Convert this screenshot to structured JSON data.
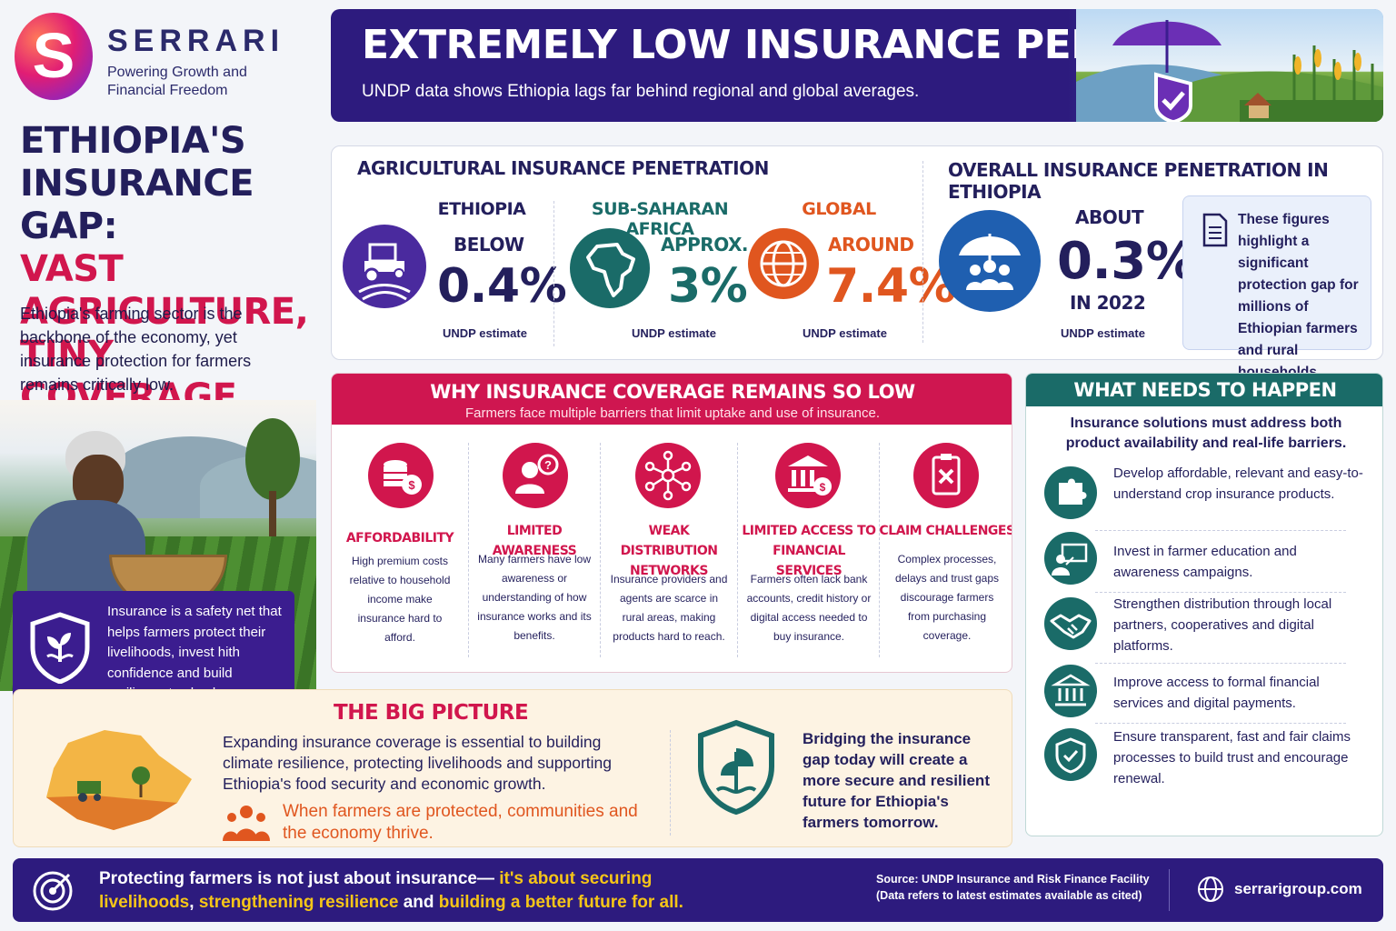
{
  "brand": {
    "name": "SERRARI",
    "tagline": "Powering Growth and Financial Freedom"
  },
  "left": {
    "title_line1": "ETHIOPIA'S",
    "title_line2": "INSURANCE GAP:",
    "title_line3": "VAST AGRICULTURE,",
    "title_line4": "TINY COVERAGE",
    "intro": "Ethiopia's farming sector is the backbone of the economy, yet insurance protection for farmers remains critically low.",
    "safety_net": "Insurance is a safety net that helps farmers protect their livelihoods, invest hith confidence and build resilience to shocks."
  },
  "banner": {
    "title": "EXTREMELY LOW INSURANCE PENETRATION",
    "subtitle": "UNDP data shows Ethiopia lags far behind regional and global averages."
  },
  "agri": {
    "title": "AGRICULTURAL INSURANCE PENETRATION",
    "stats": [
      {
        "region": "ETHIOPIA",
        "prefix": "BELOW",
        "value": "0.4%",
        "source": "UNDP estimate",
        "color": "#4a2a9e"
      },
      {
        "region": "SUB-SAHARAN AFRICA",
        "prefix": "APPROX.",
        "value": "3%",
        "source": "UNDP estimate",
        "color": "#1a6b68"
      },
      {
        "region": "GLOBAL",
        "prefix": "AROUND",
        "value": "7.4%",
        "source": "UNDP estimate",
        "color": "#e0561f"
      }
    ]
  },
  "overall": {
    "title": "OVERALL INSURANCE PENETRATION IN ETHIOPIA",
    "prefix": "ABOUT",
    "value": "0.3%",
    "year": "IN 2022",
    "source": "UNDP estimate",
    "note": "These figures highlight a significant protection gap for millions of Ethiopian farmers and rural households."
  },
  "why": {
    "title": "WHY INSURANCE COVERAGE REMAINS SO LOW",
    "subtitle": "Farmers face multiple barriers that limit uptake and use of insurance.",
    "barriers": [
      {
        "icon": "coins-icon",
        "title": "AFFORDABILITY",
        "text": "High premium costs relative to household income make insurance hard to afford."
      },
      {
        "icon": "question-person-icon",
        "title": "LIMITED AWARENESS",
        "text": "Many farmers have low awareness or understanding of how insurance works and its benefits."
      },
      {
        "icon": "network-icon",
        "title": "WEAK DISTRIBUTION NETWORKS",
        "text": "Insurance providers and agents are scarce in rural areas, making products hard to reach."
      },
      {
        "icon": "bank-icon",
        "title": "LIMITED ACCESS TO FINANCIAL SERVICES",
        "text": "Farmers often lack bank accounts, credit history or digital access needed to buy insurance."
      },
      {
        "icon": "claim-form-icon",
        "title": "CLAIM CHALLENGES",
        "text": "Complex processes, delays and trust gaps discourage farmers from purchasing coverage."
      }
    ]
  },
  "big_picture": {
    "title": "THE BIG PICTURE",
    "text": "Expanding insurance coverage is essential to building climate resilience, protecting livelihoods and supporting Ethiopia's food security and economic growth.",
    "highlight": "When farmers are protected, communities and the economy thrive.",
    "right_text": "Bridging the insurance gap today will create a more secure and resilient future for Ethiopia's farmers tomorrow."
  },
  "what": {
    "title": "WHAT NEEDS TO HAPPEN",
    "subtitle": "Insurance solutions must address both product availability and real-life barriers.",
    "actions": [
      {
        "icon": "puzzle-icon",
        "text": "Develop affordable, relevant and easy-to-understand crop insurance products."
      },
      {
        "icon": "education-icon",
        "text": "Invest in farmer education and awareness campaigns."
      },
      {
        "icon": "handshake-icon",
        "text": "Strengthen distribution through local partners, cooperatives and digital platforms."
      },
      {
        "icon": "bank-icon",
        "text": "Improve access to formal financial services and digital payments."
      },
      {
        "icon": "shield-check-icon",
        "text": "Ensure transparent, fast and fair claims processes to build trust and encourage renewal."
      }
    ]
  },
  "footer": {
    "text_a": "Protecting farmers is not just about insurance—",
    "text_b": " it's about securing livelihoods",
    "text_c": ", ",
    "text_d": "strengthening resilience",
    "text_e": " and ",
    "text_f": "building a better future for all.",
    "source_line1": "Source: UNDP Insurance and Risk Finance Facility",
    "source_line2": "(Data refers to latest estimates available as cited)",
    "website": "serrarigroup.com"
  }
}
